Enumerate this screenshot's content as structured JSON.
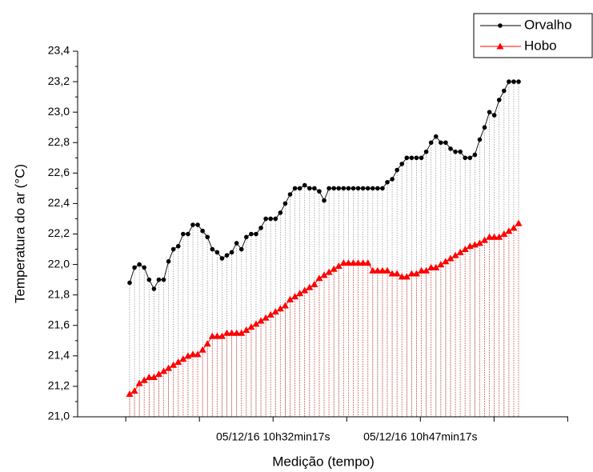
{
  "chart_data": {
    "type": "line",
    "xlabel": "Medição (tempo)",
    "ylabel": "Temperatura do ar (°C)",
    "xlim": [
      -10.7,
      90.2
    ],
    "xticks": [
      {
        "value": 29.5,
        "label": "05/12/16 10h32min17s"
      },
      {
        "value": 59.8,
        "label": "05/12/16 10h47min17s"
      }
    ],
    "ylim": [
      21.0,
      23.4
    ],
    "yticks": [
      {
        "value": 21.0,
        "label": "21,0"
      },
      {
        "value": 21.2,
        "label": "21,2"
      },
      {
        "value": 21.4,
        "label": "21,4"
      },
      {
        "value": 21.6,
        "label": "21,6"
      },
      {
        "value": 21.8,
        "label": "21,8"
      },
      {
        "value": 22.0,
        "label": "22,0"
      },
      {
        "value": 22.2,
        "label": "22,2"
      },
      {
        "value": 22.4,
        "label": "22,4"
      },
      {
        "value": 22.6,
        "label": "22,6"
      },
      {
        "value": 22.8,
        "label": "22,8"
      },
      {
        "value": 23.0,
        "label": "23,0"
      },
      {
        "value": 23.2,
        "label": "23,2"
      },
      {
        "value": 23.4,
        "label": "23,4"
      }
    ],
    "legend": "top-right",
    "drop_lines": true,
    "series": [
      {
        "name": "Orvalho",
        "color": "#000000",
        "marker": "circle",
        "drop_color": "#999999",
        "values": [
          21.88,
          21.98,
          22.0,
          21.98,
          21.9,
          21.84,
          21.9,
          21.9,
          22.02,
          22.1,
          22.12,
          22.2,
          22.2,
          22.26,
          22.26,
          22.22,
          22.18,
          22.1,
          22.08,
          22.04,
          22.06,
          22.08,
          22.14,
          22.1,
          22.18,
          22.2,
          22.2,
          22.24,
          22.3,
          22.3,
          22.3,
          22.34,
          22.4,
          22.46,
          22.5,
          22.5,
          22.52,
          22.5,
          22.5,
          22.48,
          22.42,
          22.5,
          22.5,
          22.5,
          22.5,
          22.5,
          22.5,
          22.5,
          22.5,
          22.5,
          22.5,
          22.5,
          22.5,
          22.54,
          22.56,
          22.62,
          22.66,
          22.7,
          22.7,
          22.7,
          22.7,
          22.74,
          22.8,
          22.84,
          22.8,
          22.8,
          22.76,
          22.74,
          22.74,
          22.7,
          22.7,
          22.72,
          22.82,
          22.9,
          23.0,
          22.98,
          23.08,
          23.14,
          23.2,
          23.2,
          23.2
        ]
      },
      {
        "name": "Hobo",
        "color": "#ff0000",
        "marker": "triangle",
        "drop_color": "#e05050",
        "values": [
          21.15,
          21.17,
          21.22,
          21.24,
          21.26,
          21.26,
          21.28,
          21.3,
          21.32,
          21.34,
          21.36,
          21.38,
          21.4,
          21.41,
          21.41,
          21.44,
          21.48,
          21.53,
          21.53,
          21.53,
          21.55,
          21.55,
          21.55,
          21.55,
          21.57,
          21.59,
          21.61,
          21.63,
          21.65,
          21.67,
          21.69,
          21.71,
          21.73,
          21.77,
          21.79,
          21.81,
          21.83,
          21.85,
          21.87,
          21.91,
          21.93,
          21.95,
          21.97,
          21.99,
          22.01,
          22.01,
          22.01,
          22.01,
          22.01,
          22.01,
          21.96,
          21.96,
          21.96,
          21.96,
          21.94,
          21.94,
          21.92,
          21.92,
          21.94,
          21.94,
          21.96,
          21.96,
          21.98,
          21.98,
          22.0,
          22.02,
          22.04,
          22.06,
          22.08,
          22.1,
          22.12,
          22.13,
          22.14,
          22.16,
          22.18,
          22.18,
          22.18,
          22.2,
          22.22,
          22.24,
          22.27
        ]
      }
    ]
  }
}
